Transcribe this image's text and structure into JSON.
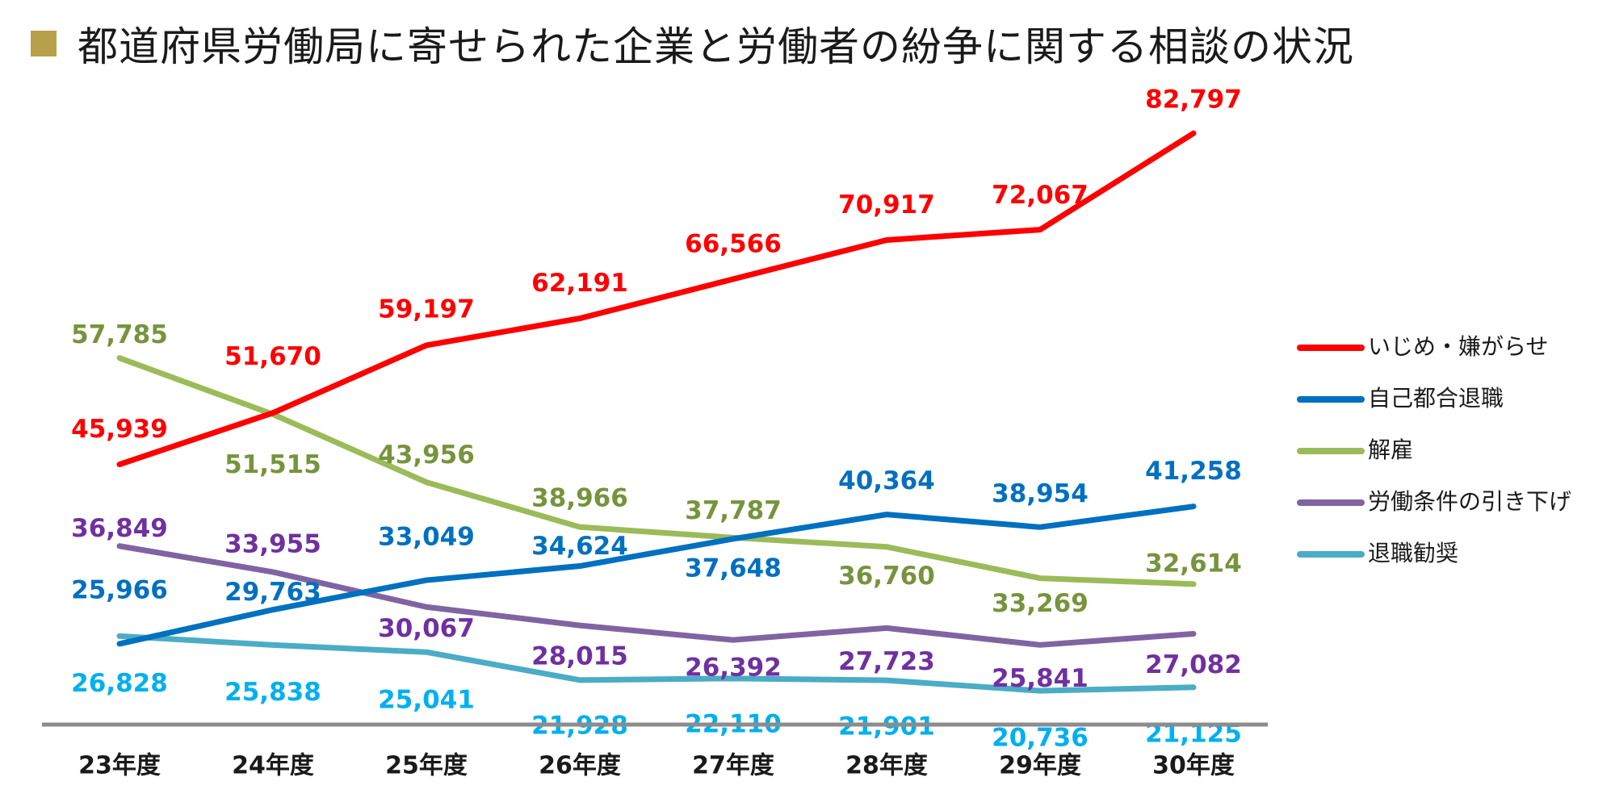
{
  "title": "都道府県労働局に寄せられた企業と労働者の紛争に関する相談の状況",
  "colors": {
    "title_marker": "#b8a04a",
    "axis_line": "#8c8c8c"
  },
  "chart_data": {
    "type": "line",
    "categories": [
      "23年度",
      "24年度",
      "25年度",
      "26年度",
      "27年度",
      "28年度",
      "29年度",
      "30年度"
    ],
    "ylim": [
      15000,
      90000
    ],
    "grid": false,
    "legend_position": "right",
    "series": [
      {
        "name": "いじめ・嫌がらせ",
        "color": "#ff0000",
        "label_color": "#ff0000",
        "values": [
          45939,
          51670,
          59197,
          62191,
          66566,
          70917,
          72067,
          82797
        ],
        "labels": [
          "45,939",
          "51,670",
          "59,197",
          "62,191",
          "66,566",
          "70,917",
          "72,067",
          "82,797"
        ]
      },
      {
        "name": "自己都合退職",
        "color": "#0070c0",
        "label_color": "#0070c0",
        "values": [
          25966,
          29763,
          33049,
          34624,
          37648,
          40364,
          38954,
          41258
        ],
        "labels": [
          "25,966",
          "29,763",
          "33,049",
          "34,624",
          "37,648",
          "40,364",
          "38,954",
          "41,258"
        ]
      },
      {
        "name": "解雇",
        "color": "#9bbb59",
        "label_color": "#77933c",
        "values": [
          57785,
          51515,
          43956,
          38966,
          37787,
          36760,
          33269,
          32614
        ],
        "labels": [
          "57,785",
          "51,515",
          "43,956",
          "38,966",
          "37,787",
          "36,760",
          "33,269",
          "32,614"
        ]
      },
      {
        "name": "労働条件の引き下げ",
        "color": "#8064a2",
        "label_color": "#7030a0",
        "values": [
          36849,
          33955,
          30067,
          28015,
          26392,
          27723,
          25841,
          27082
        ],
        "labels": [
          "36,849",
          "33,955",
          "30,067",
          "28,015",
          "26,392",
          "27,723",
          "25,841",
          "27,082"
        ]
      },
      {
        "name": "退職勧奨",
        "color": "#4bacc6",
        "label_color": "#00b0f0",
        "values": [
          26828,
          25838,
          25041,
          21928,
          22110,
          21901,
          20736,
          21125
        ],
        "labels": [
          "26,828",
          "25,838",
          "25,041",
          "21,928",
          "22,110",
          "21,901",
          "20,736",
          "21,125"
        ]
      }
    ]
  }
}
